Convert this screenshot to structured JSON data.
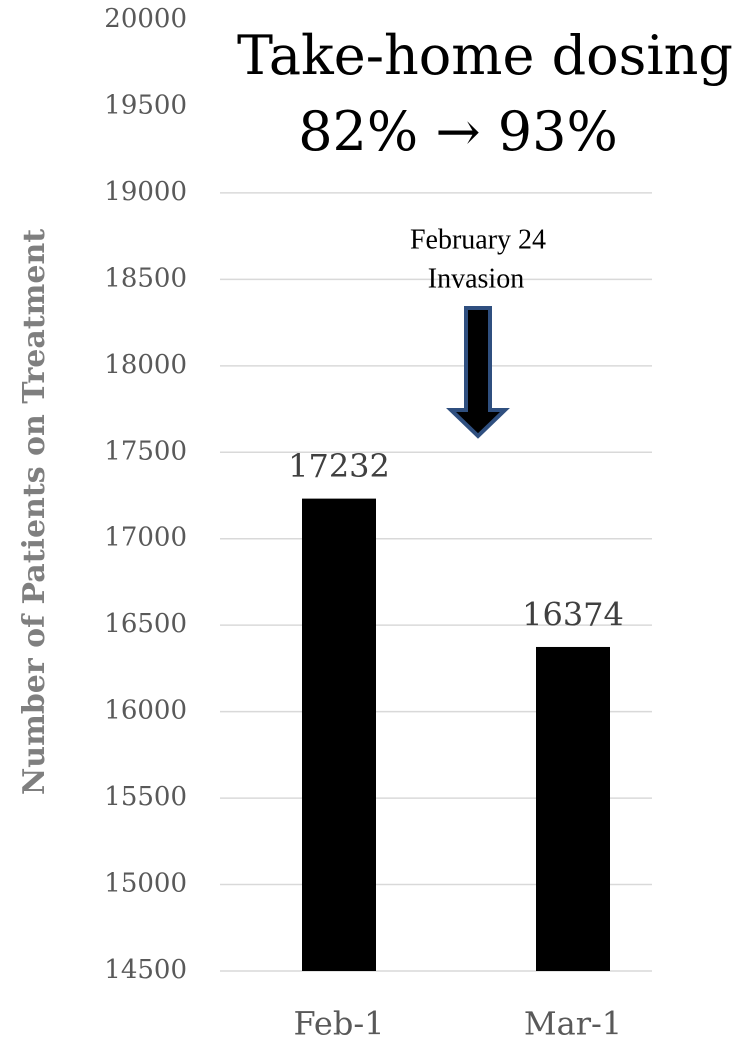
{
  "chart_data": {
    "type": "bar",
    "title": [
      "Take-home dosing",
      "82% → 93%"
    ],
    "ylabel": "Number of Patients on Treatment",
    "annotation": [
      "February 24",
      "Invasion"
    ],
    "categories": [
      "Feb-1",
      "Mar-1"
    ],
    "values": [
      17232,
      16374
    ],
    "color": "#000000",
    "ylim": [
      14500,
      20000
    ],
    "yticks": [
      14500,
      15000,
      15500,
      16000,
      16500,
      17000,
      17500,
      18000,
      18500,
      19000,
      19500,
      20000
    ],
    "grid": true
  }
}
